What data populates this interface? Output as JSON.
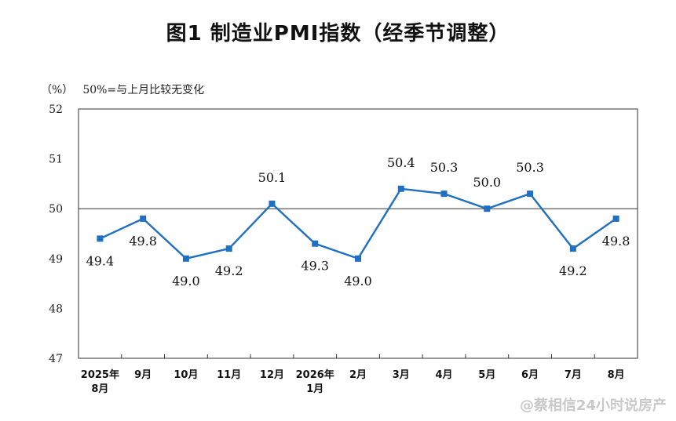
{
  "chart_data": {
    "type": "line",
    "title": "图1 制造业PMI指数（经季节调整）",
    "unit": "（%）",
    "note": "50%=与上月比较无变化",
    "categories": [
      "2025年\n8月",
      "9月",
      "10月",
      "11月",
      "12月",
      "2026年\n1月",
      "2月",
      "3月",
      "4月",
      "5月",
      "6月",
      "7月",
      "8月"
    ],
    "series": [
      {
        "values": [
          49.4,
          49.8,
          49.0,
          49.2,
          50.1,
          49.3,
          49.0,
          50.4,
          50.3,
          50.0,
          50.3,
          49.2,
          49.8
        ]
      }
    ],
    "data_labels": [
      "49.4",
      "49.8",
      "49.0",
      "49.2",
      "50.1",
      "49.3",
      "49.0",
      "50.4",
      "50.3",
      "50.0",
      "50.3",
      "49.2",
      "49.8"
    ],
    "label_positions": [
      "below",
      "below",
      "below",
      "below",
      "above",
      "below",
      "below",
      "above",
      "above",
      "above",
      "above",
      "below",
      "below"
    ],
    "ylim": [
      47,
      52
    ],
    "yticks": [
      "47",
      "48",
      "49",
      "50",
      "51",
      "52"
    ],
    "reference_line": 50,
    "line_color": "#1f6fc2",
    "grid": false,
    "legend": "none"
  },
  "watermark": "@蔡相信24小时说房产"
}
